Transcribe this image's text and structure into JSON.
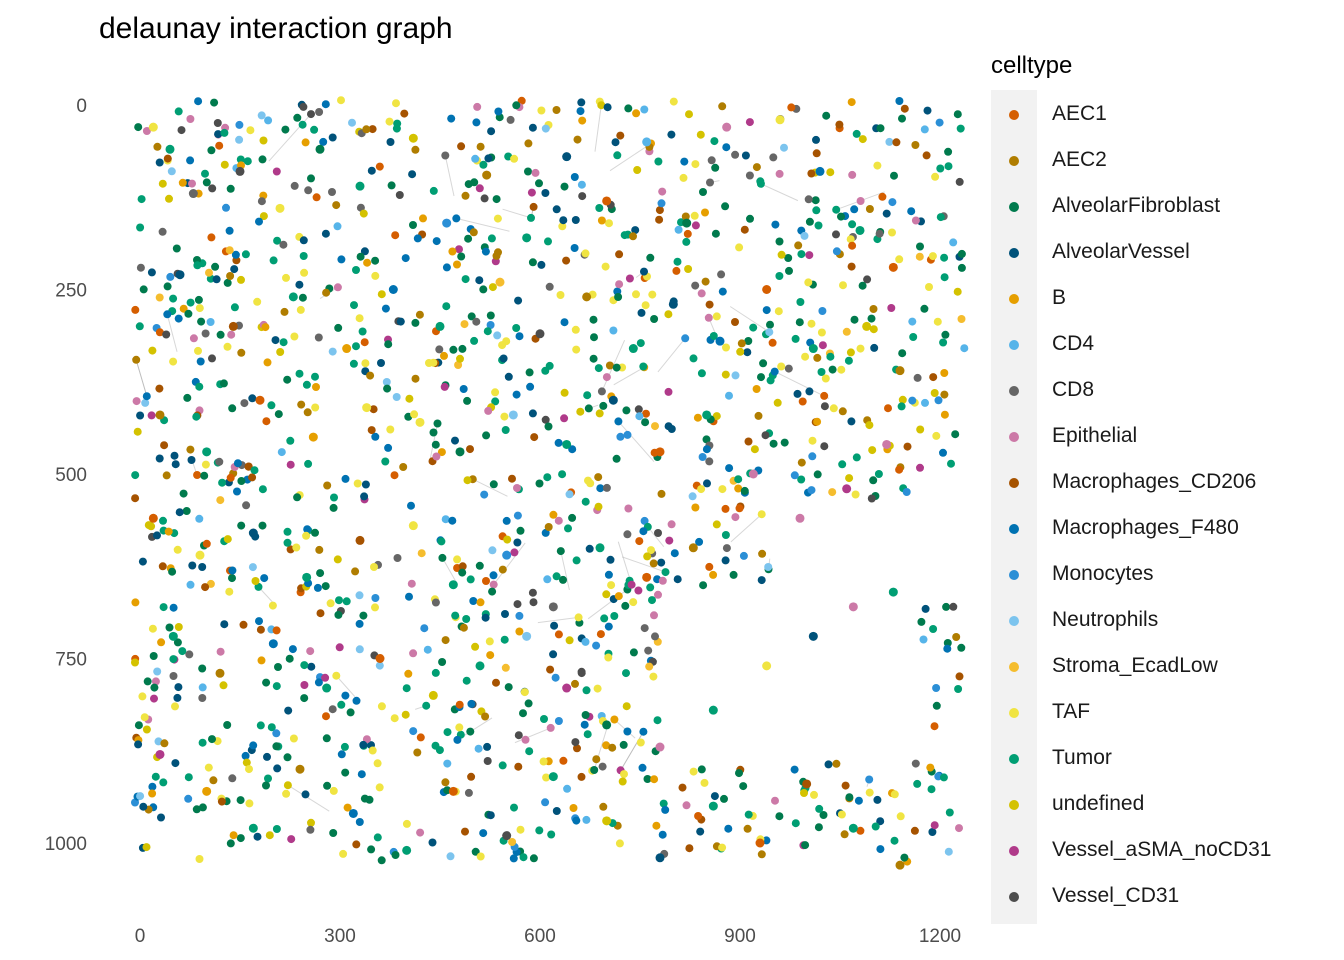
{
  "chart_data": {
    "type": "scatter",
    "title": "delaunay interaction graph",
    "xlabel": "",
    "ylabel": "",
    "xlim": [
      0,
      1200
    ],
    "ylim": [
      0,
      1040
    ],
    "y_reversed": true,
    "x_ticks": [
      0,
      300,
      600,
      900,
      1200
    ],
    "y_ticks": [
      0,
      250,
      500,
      750,
      1000
    ],
    "edge_color": "#bdbdbd",
    "grid": false,
    "legend": {
      "title": "celltype",
      "placement": "right",
      "entries": [
        {
          "name": "AEC1",
          "color": "#d55e00"
        },
        {
          "name": "AEC2",
          "color": "#b07d00"
        },
        {
          "name": "AlveolarFibroblast",
          "color": "#007a4d"
        },
        {
          "name": "AlveolarVessel",
          "color": "#00527a"
        },
        {
          "name": "B",
          "color": "#e69f00"
        },
        {
          "name": "CD4",
          "color": "#56b4e9"
        },
        {
          "name": "CD8",
          "color": "#666666"
        },
        {
          "name": "Epithelial",
          "color": "#cc79a7"
        },
        {
          "name": "Macrophages_CD206",
          "color": "#a65300"
        },
        {
          "name": "Macrophages_F480",
          "color": "#0072b2"
        },
        {
          "name": "Monocytes",
          "color": "#2b8fd6"
        },
        {
          "name": "Neutrophils",
          "color": "#7cc4ee"
        },
        {
          "name": "Stroma_EcadLow",
          "color": "#f5bd2e"
        },
        {
          "name": "TAF",
          "color": "#f0e442"
        },
        {
          "name": "Tumor",
          "color": "#009e73"
        },
        {
          "name": "undefined",
          "color": "#d4c200"
        },
        {
          "name": "Vessel_aSMA_noCD31",
          "color": "#b03a8a"
        },
        {
          "name": "Vessel_CD31",
          "color": "#4d4d4d"
        }
      ]
    },
    "points": [
      {
        "x": 20,
        "y": 30,
        "type": "TAF"
      },
      {
        "x": 45,
        "y": 60,
        "type": "Tumor"
      },
      {
        "x": 80,
        "y": 120,
        "type": "CD8"
      },
      {
        "x": 150,
        "y": 90,
        "type": "Vessel_CD31"
      },
      {
        "x": 210,
        "y": 140,
        "type": "TAF"
      },
      {
        "x": 270,
        "y": 60,
        "type": "AlveolarFibroblast"
      },
      {
        "x": 330,
        "y": 110,
        "type": "Tumor"
      },
      {
        "x": 410,
        "y": 45,
        "type": "undefined"
      },
      {
        "x": 460,
        "y": 160,
        "type": "Monocytes"
      },
      {
        "x": 520,
        "y": 95,
        "type": "AEC2"
      },
      {
        "x": 580,
        "y": 180,
        "type": "Tumor"
      },
      {
        "x": 640,
        "y": 70,
        "type": "AlveolarVessel"
      },
      {
        "x": 700,
        "y": 130,
        "type": "AEC1"
      },
      {
        "x": 760,
        "y": 50,
        "type": "CD4"
      },
      {
        "x": 820,
        "y": 160,
        "type": "AlveolarFibroblast"
      },
      {
        "x": 880,
        "y": 30,
        "type": "Epithelial"
      },
      {
        "x": 960,
        "y": 20,
        "type": "TAF"
      },
      {
        "x": 1020,
        "y": 90,
        "type": "Macrophages_F480"
      },
      {
        "x": 1080,
        "y": 170,
        "type": "Tumor"
      },
      {
        "x": 1130,
        "y": 220,
        "type": "AEC1"
      },
      {
        "x": 60,
        "y": 230,
        "type": "AlveolarVessel"
      },
      {
        "x": 140,
        "y": 300,
        "type": "Macrophages_CD206"
      },
      {
        "x": 230,
        "y": 260,
        "type": "Tumor"
      },
      {
        "x": 310,
        "y": 330,
        "type": "B"
      },
      {
        "x": 380,
        "y": 250,
        "type": "Macrophages_F480"
      },
      {
        "x": 450,
        "y": 300,
        "type": "Tumor"
      },
      {
        "x": 540,
        "y": 240,
        "type": "Stroma_EcadLow"
      },
      {
        "x": 600,
        "y": 310,
        "type": "Vessel_CD31"
      },
      {
        "x": 670,
        "y": 260,
        "type": "AEC2"
      },
      {
        "x": 740,
        "y": 330,
        "type": "Tumor"
      },
      {
        "x": 800,
        "y": 270,
        "type": "AlveolarVessel"
      },
      {
        "x": 870,
        "y": 320,
        "type": "Macrophages_F480"
      },
      {
        "x": 940,
        "y": 250,
        "type": "AEC1"
      },
      {
        "x": 1010,
        "y": 330,
        "type": "Tumor"
      },
      {
        "x": 1090,
        "y": 300,
        "type": "undefined"
      },
      {
        "x": 1140,
        "y": 360,
        "type": "AEC2"
      },
      {
        "x": 30,
        "y": 420,
        "type": "AEC2"
      },
      {
        "x": 100,
        "y": 470,
        "type": "Tumor"
      },
      {
        "x": 180,
        "y": 400,
        "type": "AEC1"
      },
      {
        "x": 260,
        "y": 450,
        "type": "B"
      },
      {
        "x": 340,
        "y": 410,
        "type": "TAF"
      },
      {
        "x": 420,
        "y": 430,
        "type": "TAF"
      },
      {
        "x": 480,
        "y": 470,
        "type": "AlveolarFibroblast"
      },
      {
        "x": 560,
        "y": 420,
        "type": "Neutrophils"
      },
      {
        "x": 640,
        "y": 460,
        "type": "Tumor"
      },
      {
        "x": 710,
        "y": 400,
        "type": "AlveolarVessel"
      },
      {
        "x": 780,
        "y": 470,
        "type": "AEC1"
      },
      {
        "x": 850,
        "y": 420,
        "type": "Tumor"
      },
      {
        "x": 920,
        "y": 500,
        "type": "Epithelial"
      },
      {
        "x": 990,
        "y": 560,
        "type": "Epithelial"
      },
      {
        "x": 1060,
        "y": 520,
        "type": "Vessel_aSMA_noCD31"
      },
      {
        "x": 1120,
        "y": 460,
        "type": "Epithelial"
      },
      {
        "x": 20,
        "y": 560,
        "type": "AEC1"
      },
      {
        "x": 90,
        "y": 610,
        "type": "TAF"
      },
      {
        "x": 170,
        "y": 580,
        "type": "AlveolarVessel"
      },
      {
        "x": 250,
        "y": 640,
        "type": "Tumor"
      },
      {
        "x": 330,
        "y": 590,
        "type": "Macrophages_CD206"
      },
      {
        "x": 410,
        "y": 570,
        "type": "TAF"
      },
      {
        "x": 470,
        "y": 650,
        "type": "Tumor"
      },
      {
        "x": 550,
        "y": 610,
        "type": "Monocytes"
      },
      {
        "x": 620,
        "y": 680,
        "type": "CD8"
      },
      {
        "x": 690,
        "y": 600,
        "type": "Tumor"
      },
      {
        "x": 760,
        "y": 640,
        "type": "AEC1"
      },
      {
        "x": 830,
        "y": 600,
        "type": "AEC2"
      },
      {
        "x": 50,
        "y": 720,
        "type": "Tumor"
      },
      {
        "x": 120,
        "y": 770,
        "type": "AEC2"
      },
      {
        "x": 200,
        "y": 730,
        "type": "Macrophages_F480"
      },
      {
        "x": 280,
        "y": 790,
        "type": "Tumor"
      },
      {
        "x": 360,
        "y": 750,
        "type": "AEC1"
      },
      {
        "x": 440,
        "y": 800,
        "type": "undefined"
      },
      {
        "x": 510,
        "y": 760,
        "type": "Tumor"
      },
      {
        "x": 580,
        "y": 720,
        "type": "Neutrophils"
      },
      {
        "x": 640,
        "y": 790,
        "type": "Vessel_aSMA_noCD31"
      },
      {
        "x": 700,
        "y": 840,
        "type": "AlveolarFibroblast"
      },
      {
        "x": 780,
        "y": 870,
        "type": "Epithelial"
      },
      {
        "x": 860,
        "y": 820,
        "type": "Tumor"
      },
      {
        "x": 940,
        "y": 760,
        "type": "TAF"
      },
      {
        "x": 1010,
        "y": 720,
        "type": "AlveolarVessel"
      },
      {
        "x": 1070,
        "y": 680,
        "type": "Epithelial"
      },
      {
        "x": 1130,
        "y": 660,
        "type": "Tumor"
      },
      {
        "x": 30,
        "y": 880,
        "type": "Vessel_aSMA_noCD31"
      },
      {
        "x": 100,
        "y": 930,
        "type": "B"
      },
      {
        "x": 170,
        "y": 980,
        "type": "Tumor"
      },
      {
        "x": 240,
        "y": 900,
        "type": "AEC2"
      },
      {
        "x": 320,
        "y": 960,
        "type": "Macrophages_F480"
      },
      {
        "x": 400,
        "y": 1010,
        "type": "Tumor"
      },
      {
        "x": 470,
        "y": 930,
        "type": "AEC1"
      },
      {
        "x": 550,
        "y": 990,
        "type": "Vessel_CD31"
      },
      {
        "x": 620,
        "y": 910,
        "type": "Tumor"
      },
      {
        "x": 700,
        "y": 970,
        "type": "undefined"
      },
      {
        "x": 780,
        "y": 1020,
        "type": "AlveolarVessel"
      },
      {
        "x": 860,
        "y": 950,
        "type": "Tumor"
      },
      {
        "x": 930,
        "y": 1000,
        "type": "AEC1"
      },
      {
        "x": 1000,
        "y": 920,
        "type": "Macrophages_CD206"
      },
      {
        "x": 1070,
        "y": 980,
        "type": "Tumor"
      },
      {
        "x": 1140,
        "y": 1030,
        "type": "AEC2"
      }
    ]
  }
}
